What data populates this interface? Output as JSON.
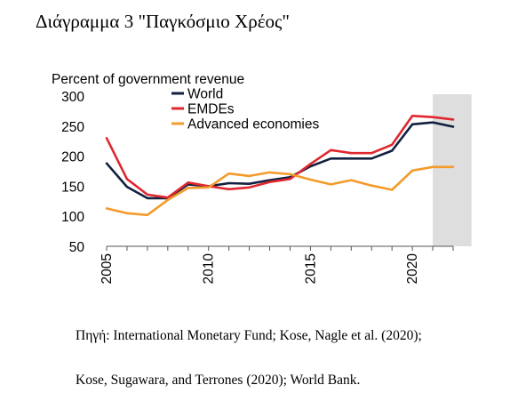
{
  "caption": "Διάγραμμα 3 \"Παγκόσμιο Χρέος\"",
  "source": {
    "line1": "Πηγή: International Monetary Fund; Kose, Nagle et al. (2020);",
    "line2": "Kose, Sugawara, and Terrones (2020); World Bank."
  },
  "chart_data": {
    "type": "line",
    "title": "Percent of government revenue",
    "xlabel": "",
    "ylabel": "",
    "xlim": [
      2005,
      2022
    ],
    "ylim": [
      50,
      300
    ],
    "yticks": [
      50,
      100,
      150,
      200,
      250,
      300
    ],
    "xticks": [
      2005,
      2010,
      2015,
      2020
    ],
    "shaded_region": [
      2021,
      2022.9
    ],
    "legend_position": "top-left",
    "grid": false,
    "x": [
      2005,
      2006,
      2007,
      2008,
      2009,
      2010,
      2011,
      2012,
      2013,
      2014,
      2015,
      2016,
      2017,
      2018,
      2019,
      2020,
      2021,
      2022
    ],
    "series": [
      {
        "name": "World",
        "color": "#12213f",
        "values": [
          188,
          149,
          130,
          130,
          153,
          150,
          155,
          154,
          160,
          165,
          183,
          196,
          196,
          196,
          209,
          253,
          256,
          249
        ]
      },
      {
        "name": "EMDEs",
        "color": "#e0272f",
        "values": [
          230,
          162,
          136,
          131,
          156,
          150,
          145,
          148,
          157,
          162,
          187,
          210,
          205,
          205,
          219,
          267,
          265,
          261
        ]
      },
      {
        "name": "Advanced economies",
        "color": "#f39b2b",
        "values": [
          113,
          105,
          102,
          127,
          147,
          148,
          171,
          167,
          173,
          170,
          161,
          153,
          160,
          151,
          144,
          176,
          182,
          182
        ]
      }
    ]
  }
}
